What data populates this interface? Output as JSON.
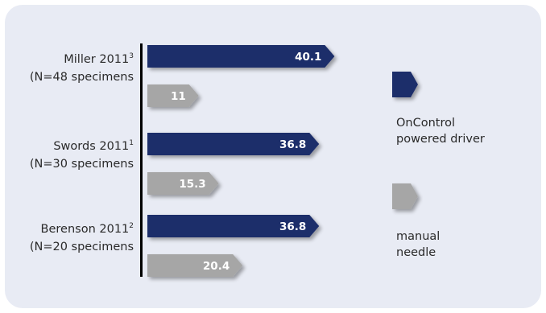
{
  "chart_data": {
    "type": "bar",
    "orientation": "horizontal",
    "categories": [
      {
        "line1": "Miller 2011",
        "sup": "3",
        "line2": "(N=48 specimens"
      },
      {
        "line1": "Swords 2011",
        "sup": "1",
        "line2": "(N=30 specimens"
      },
      {
        "line1": "Berenson 2011",
        "sup": "2",
        "line2": "(N=20 specimens"
      }
    ],
    "series": [
      {
        "name_lines": [
          "OnControl",
          "powered driver"
        ],
        "color": "#1f2d6b",
        "values": [
          40.1,
          36.8,
          36.8
        ],
        "labels": [
          "40.1",
          "36.8",
          "36.8"
        ]
      },
      {
        "name_lines": [
          "manual",
          "needle"
        ],
        "color": "#a6a6a6",
        "values": [
          11,
          15.3,
          20.4
        ],
        "labels": [
          "11",
          "15.3",
          "20.4"
        ]
      }
    ],
    "xlim": [
      0,
      44
    ],
    "grid": false,
    "legend_position": "right",
    "colors": {
      "panel": "#e8ebf4",
      "axis": "#000000"
    }
  }
}
